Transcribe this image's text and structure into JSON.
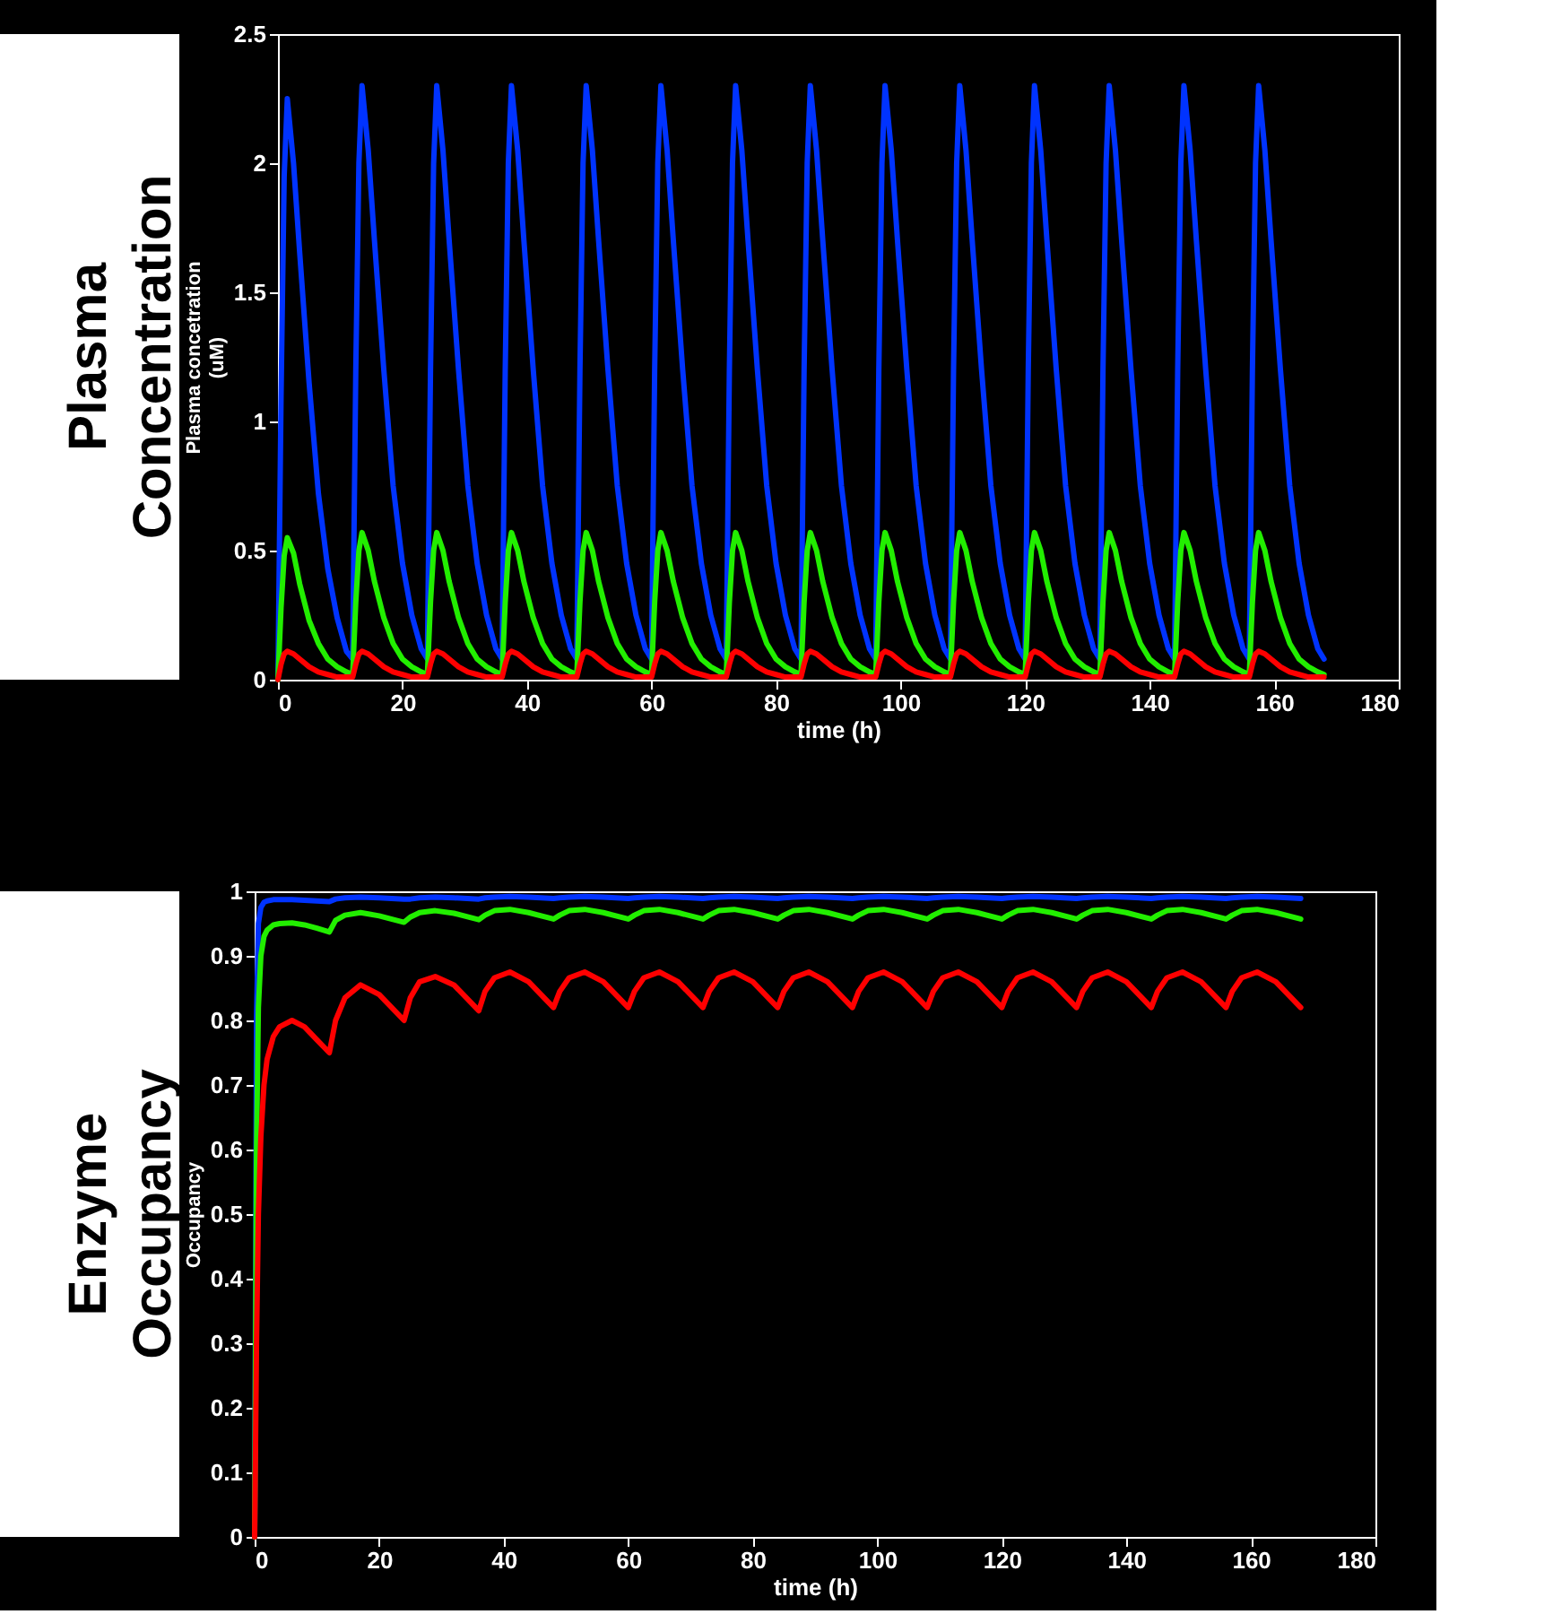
{
  "chart_data": [
    {
      "type": "line",
      "title": "Plasma Concentration",
      "xlabel": "time (h)",
      "ylabel": "Plasma concetration\n(uM)",
      "x": [
        0,
        0.5,
        1,
        1.5,
        2.5,
        3.5,
        5,
        6.5,
        8,
        9.5,
        11,
        12,
        12.5,
        13,
        13.5,
        14.5,
        15.5,
        17,
        18.5,
        20,
        21.5,
        23,
        24,
        24.5,
        25,
        25.5,
        26.5,
        27.5,
        29,
        30.5,
        32,
        33.5,
        35,
        36,
        36.5,
        37,
        37.5,
        38.5,
        39.5,
        41,
        42.5,
        44,
        45.5,
        47,
        48,
        48.5,
        49,
        49.5,
        50.5,
        51.5,
        53,
        54.5,
        56,
        57.5,
        59,
        60,
        60.5,
        61,
        61.5,
        62.5,
        63.5,
        65,
        66.5,
        68,
        69.5,
        71,
        72,
        72.5,
        73,
        73.5,
        74.5,
        75.5,
        77,
        78.5,
        80,
        81.5,
        83,
        84,
        84.5,
        85,
        85.5,
        86.5,
        87.5,
        89,
        90.5,
        92,
        93.5,
        95,
        96,
        96.5,
        97,
        97.5,
        98.5,
        99.5,
        101,
        102.5,
        104,
        105.5,
        107,
        108,
        108.5,
        109,
        109.5,
        110.5,
        111.5,
        113,
        114.5,
        116,
        117.5,
        119,
        120,
        120.5,
        121,
        121.5,
        122.5,
        123.5,
        125,
        126.5,
        128,
        129.5,
        131,
        132,
        132.5,
        133,
        133.5,
        134.5,
        135.5,
        137,
        138.5,
        140,
        141.5,
        143,
        144,
        144.5,
        145,
        145.5,
        146.5,
        147.5,
        149,
        150.5,
        152,
        153.5,
        155,
        156,
        156.5,
        157,
        157.5,
        158.5,
        159.5,
        161,
        162.5,
        164,
        165.5,
        167,
        168
      ],
      "series": [
        {
          "color": "#0033ff",
          "values": [
            0,
            1.1,
            1.95,
            2.25,
            2.0,
            1.65,
            1.15,
            0.72,
            0.43,
            0.24,
            0.11,
            0.08,
            1.2,
            2.0,
            2.3,
            2.05,
            1.7,
            1.2,
            0.75,
            0.45,
            0.25,
            0.12,
            0.08,
            1.2,
            2.0,
            2.3,
            2.05,
            1.7,
            1.2,
            0.75,
            0.45,
            0.25,
            0.12,
            0.08,
            1.2,
            2.0,
            2.3,
            2.05,
            1.7,
            1.2,
            0.75,
            0.45,
            0.25,
            0.12,
            0.08,
            1.2,
            2.0,
            2.3,
            2.05,
            1.7,
            1.2,
            0.75,
            0.45,
            0.25,
            0.12,
            0.08,
            1.2,
            2.0,
            2.3,
            2.05,
            1.7,
            1.2,
            0.75,
            0.45,
            0.25,
            0.12,
            0.08,
            1.2,
            2.0,
            2.3,
            2.05,
            1.7,
            1.2,
            0.75,
            0.45,
            0.25,
            0.12,
            0.08,
            1.2,
            2.0,
            2.3,
            2.05,
            1.7,
            1.2,
            0.75,
            0.45,
            0.25,
            0.12,
            0.08,
            1.2,
            2.0,
            2.3,
            2.05,
            1.7,
            1.2,
            0.75,
            0.45,
            0.25,
            0.12,
            0.08,
            1.2,
            2.0,
            2.3,
            2.05,
            1.7,
            1.2,
            0.75,
            0.45,
            0.25,
            0.12,
            0.08,
            1.2,
            2.0,
            2.3,
            2.05,
            1.7,
            1.2,
            0.75,
            0.45,
            0.25,
            0.12,
            0.08,
            1.2,
            2.0,
            2.3,
            2.05,
            1.7,
            1.2,
            0.75,
            0.45,
            0.25,
            0.12,
            0.08,
            1.2,
            2.0,
            2.3,
            2.05,
            1.7,
            1.2,
            0.75,
            0.45,
            0.25,
            0.12,
            0.08,
            1.2,
            2.0,
            2.3,
            2.05,
            1.7,
            1.2,
            0.75,
            0.45,
            0.25,
            0.12,
            0.08
          ]
        },
        {
          "color": "#22ee00",
          "values": [
            0,
            0.28,
            0.48,
            0.55,
            0.49,
            0.37,
            0.23,
            0.14,
            0.08,
            0.05,
            0.03,
            0.02,
            0.3,
            0.5,
            0.57,
            0.5,
            0.38,
            0.24,
            0.14,
            0.08,
            0.05,
            0.03,
            0.02,
            0.3,
            0.5,
            0.57,
            0.5,
            0.38,
            0.24,
            0.14,
            0.08,
            0.05,
            0.03,
            0.02,
            0.3,
            0.5,
            0.57,
            0.5,
            0.38,
            0.24,
            0.14,
            0.08,
            0.05,
            0.03,
            0.02,
            0.3,
            0.5,
            0.57,
            0.5,
            0.38,
            0.24,
            0.14,
            0.08,
            0.05,
            0.03,
            0.02,
            0.3,
            0.5,
            0.57,
            0.5,
            0.38,
            0.24,
            0.14,
            0.08,
            0.05,
            0.03,
            0.02,
            0.3,
            0.5,
            0.57,
            0.5,
            0.38,
            0.24,
            0.14,
            0.08,
            0.05,
            0.03,
            0.02,
            0.3,
            0.5,
            0.57,
            0.5,
            0.38,
            0.24,
            0.14,
            0.08,
            0.05,
            0.03,
            0.02,
            0.3,
            0.5,
            0.57,
            0.5,
            0.38,
            0.24,
            0.14,
            0.08,
            0.05,
            0.03,
            0.02,
            0.3,
            0.5,
            0.57,
            0.5,
            0.38,
            0.24,
            0.14,
            0.08,
            0.05,
            0.03,
            0.02,
            0.3,
            0.5,
            0.57,
            0.5,
            0.38,
            0.24,
            0.14,
            0.08,
            0.05,
            0.03,
            0.02,
            0.3,
            0.5,
            0.57,
            0.5,
            0.38,
            0.24,
            0.14,
            0.08,
            0.05,
            0.03,
            0.02,
            0.3,
            0.5,
            0.57,
            0.5,
            0.38,
            0.24,
            0.14,
            0.08,
            0.05,
            0.03,
            0.02,
            0.3,
            0.5,
            0.57,
            0.5,
            0.38,
            0.24,
            0.14,
            0.08,
            0.05,
            0.03,
            0.02
          ]
        },
        {
          "color": "#ff0000",
          "values": [
            0,
            0.06,
            0.1,
            0.11,
            0.1,
            0.08,
            0.05,
            0.03,
            0.02,
            0.01,
            0.01,
            0.01,
            0.06,
            0.1,
            0.11,
            0.1,
            0.08,
            0.05,
            0.03,
            0.02,
            0.01,
            0.01,
            0.01,
            0.06,
            0.1,
            0.11,
            0.1,
            0.08,
            0.05,
            0.03,
            0.02,
            0.01,
            0.01,
            0.01,
            0.06,
            0.1,
            0.11,
            0.1,
            0.08,
            0.05,
            0.03,
            0.02,
            0.01,
            0.01,
            0.01,
            0.06,
            0.1,
            0.11,
            0.1,
            0.08,
            0.05,
            0.03,
            0.02,
            0.01,
            0.01,
            0.01,
            0.06,
            0.1,
            0.11,
            0.1,
            0.08,
            0.05,
            0.03,
            0.02,
            0.01,
            0.01,
            0.01,
            0.06,
            0.1,
            0.11,
            0.1,
            0.08,
            0.05,
            0.03,
            0.02,
            0.01,
            0.01,
            0.01,
            0.06,
            0.1,
            0.11,
            0.1,
            0.08,
            0.05,
            0.03,
            0.02,
            0.01,
            0.01,
            0.01,
            0.06,
            0.1,
            0.11,
            0.1,
            0.08,
            0.05,
            0.03,
            0.02,
            0.01,
            0.01,
            0.01,
            0.06,
            0.1,
            0.11,
            0.1,
            0.08,
            0.05,
            0.03,
            0.02,
            0.01,
            0.01,
            0.01,
            0.06,
            0.1,
            0.11,
            0.1,
            0.08,
            0.05,
            0.03,
            0.02,
            0.01,
            0.01,
            0.01,
            0.06,
            0.1,
            0.11,
            0.1,
            0.08,
            0.05,
            0.03,
            0.02,
            0.01,
            0.01,
            0.01,
            0.06,
            0.1,
            0.11,
            0.1,
            0.08,
            0.05,
            0.03,
            0.02,
            0.01,
            0.01,
            0.01,
            0.06,
            0.1,
            0.11,
            0.1,
            0.08,
            0.05,
            0.03,
            0.02,
            0.01,
            0.01,
            0.01
          ]
        }
      ],
      "xlim": [
        0,
        180
      ],
      "xticks": [
        0,
        20,
        40,
        60,
        80,
        100,
        120,
        140,
        160,
        180
      ],
      "ylim": [
        0,
        2.5
      ],
      "yticks": [
        0,
        0.5,
        1,
        1.5,
        2,
        2.5
      ],
      "grid": false,
      "legend": false,
      "line_style": "solid",
      "marker": "none"
    },
    {
      "type": "line",
      "title": "Enzyme Occupancy",
      "xlabel": "time (h)",
      "ylabel": "Occupancy",
      "x": [
        0,
        0.3,
        0.6,
        1,
        1.5,
        2,
        3,
        4,
        6,
        8,
        10,
        12,
        13,
        14.5,
        17,
        20,
        24,
        25,
        26.5,
        29,
        32,
        36,
        37,
        38.5,
        41,
        44,
        48,
        49,
        50.5,
        53,
        56,
        60,
        61,
        62.5,
        65,
        68,
        72,
        73,
        74.5,
        77,
        80,
        84,
        85,
        86.5,
        89,
        92,
        96,
        97,
        98.5,
        101,
        104,
        108,
        109,
        110.5,
        113,
        116,
        120,
        121,
        122.5,
        125,
        128,
        132,
        133,
        134.5,
        137,
        140,
        144,
        145,
        146.5,
        149,
        152,
        156,
        157,
        158.5,
        161,
        164,
        168
      ],
      "series": [
        {
          "color": "#0033ff",
          "values": [
            0,
            0.8,
            0.95,
            0.975,
            0.983,
            0.985,
            0.987,
            0.987,
            0.987,
            0.986,
            0.985,
            0.984,
            0.988,
            0.99,
            0.991,
            0.99,
            0.988,
            0.988,
            0.99,
            0.991,
            0.99,
            0.988,
            0.99,
            0.991,
            0.992,
            0.991,
            0.989,
            0.99,
            0.991,
            0.992,
            0.991,
            0.989,
            0.99,
            0.991,
            0.992,
            0.991,
            0.989,
            0.99,
            0.991,
            0.992,
            0.991,
            0.989,
            0.99,
            0.991,
            0.992,
            0.991,
            0.989,
            0.99,
            0.991,
            0.992,
            0.991,
            0.989,
            0.99,
            0.991,
            0.992,
            0.991,
            0.989,
            0.99,
            0.991,
            0.992,
            0.991,
            0.989,
            0.99,
            0.991,
            0.992,
            0.991,
            0.989,
            0.99,
            0.991,
            0.992,
            0.991,
            0.989,
            0.99,
            0.991,
            0.992,
            0.991,
            0.989
          ]
        },
        {
          "color": "#22ee00",
          "values": [
            0,
            0.6,
            0.82,
            0.9,
            0.93,
            0.94,
            0.948,
            0.95,
            0.951,
            0.948,
            0.943,
            0.937,
            0.955,
            0.963,
            0.967,
            0.962,
            0.952,
            0.96,
            0.967,
            0.97,
            0.966,
            0.956,
            0.963,
            0.97,
            0.972,
            0.967,
            0.957,
            0.963,
            0.97,
            0.972,
            0.967,
            0.957,
            0.963,
            0.97,
            0.972,
            0.967,
            0.957,
            0.963,
            0.97,
            0.972,
            0.967,
            0.957,
            0.963,
            0.97,
            0.972,
            0.967,
            0.957,
            0.963,
            0.97,
            0.972,
            0.967,
            0.957,
            0.963,
            0.97,
            0.972,
            0.967,
            0.957,
            0.963,
            0.97,
            0.972,
            0.967,
            0.957,
            0.963,
            0.97,
            0.972,
            0.967,
            0.957,
            0.963,
            0.97,
            0.972,
            0.967,
            0.957,
            0.963,
            0.97,
            0.972,
            0.967,
            0.957
          ]
        },
        {
          "color": "#ff0000",
          "values": [
            0,
            0.3,
            0.5,
            0.62,
            0.7,
            0.74,
            0.775,
            0.79,
            0.8,
            0.79,
            0.77,
            0.75,
            0.8,
            0.835,
            0.855,
            0.84,
            0.8,
            0.835,
            0.86,
            0.868,
            0.855,
            0.815,
            0.845,
            0.866,
            0.875,
            0.86,
            0.82,
            0.845,
            0.866,
            0.875,
            0.86,
            0.82,
            0.845,
            0.866,
            0.875,
            0.86,
            0.82,
            0.845,
            0.866,
            0.875,
            0.86,
            0.82,
            0.845,
            0.866,
            0.875,
            0.86,
            0.82,
            0.845,
            0.866,
            0.875,
            0.86,
            0.82,
            0.845,
            0.866,
            0.875,
            0.86,
            0.82,
            0.845,
            0.866,
            0.875,
            0.86,
            0.82,
            0.845,
            0.866,
            0.875,
            0.86,
            0.82,
            0.845,
            0.866,
            0.875,
            0.86,
            0.82,
            0.845,
            0.866,
            0.875,
            0.86,
            0.82
          ]
        }
      ],
      "xlim": [
        0,
        180
      ],
      "xticks": [
        0,
        20,
        40,
        60,
        80,
        100,
        120,
        140,
        160,
        180
      ],
      "ylim": [
        0,
        1
      ],
      "yticks": [
        0,
        0.1,
        0.2,
        0.3,
        0.4,
        0.5,
        0.6,
        0.7,
        0.8,
        0.9,
        1
      ],
      "grid": false,
      "legend": false,
      "line_style": "solid",
      "marker": "none"
    }
  ]
}
